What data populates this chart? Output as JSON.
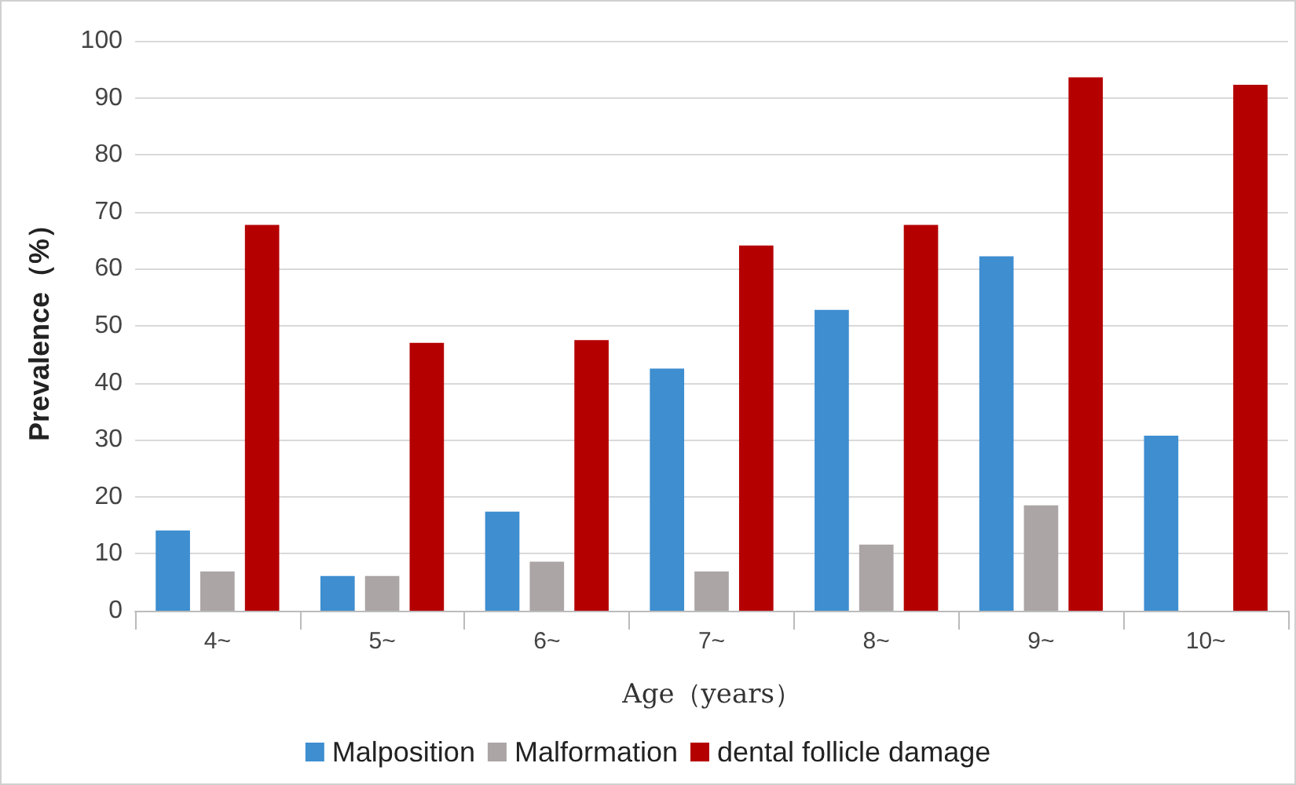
{
  "chart_data": {
    "type": "bar",
    "xlabel": "Age（years）",
    "ylabel": "Prevalence（%）",
    "categories": [
      "4~",
      "5~",
      "6~",
      "7~",
      "8~",
      "9~",
      "10~"
    ],
    "series": [
      {
        "name": "Malposition",
        "color": "#3e8ed0",
        "values": [
          14.1,
          6.1,
          17.4,
          42.5,
          52.8,
          62.2,
          30.7
        ]
      },
      {
        "name": "Malformation",
        "color": "#aba5a5",
        "values": [
          6.9,
          6.1,
          8.6,
          6.9,
          11.6,
          18.5,
          null
        ]
      },
      {
        "name": "dental follicle damage",
        "color": "#b50000",
        "values": [
          67.7,
          47,
          47.5,
          64.1,
          67.7,
          93.6,
          92.3
        ]
      }
    ],
    "ylim": [
      0,
      100
    ],
    "yticks": [
      0,
      10,
      20,
      30,
      40,
      50,
      60,
      70,
      80,
      90,
      100
    ],
    "grid": "y",
    "legend": "bottom"
  }
}
